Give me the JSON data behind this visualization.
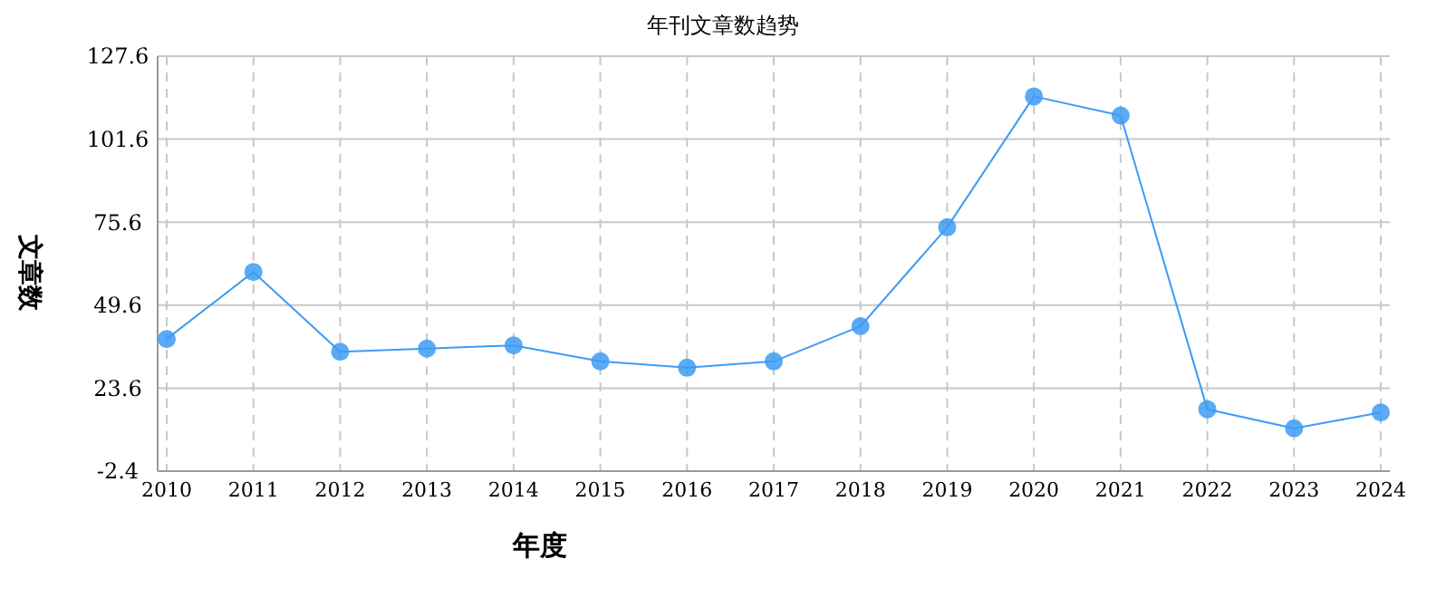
{
  "chart_data": {
    "type": "line",
    "title": "年刊文章数趋势",
    "xlabel": "年度",
    "ylabel": "文章数",
    "categories": [
      "2010",
      "2011",
      "2012",
      "2013",
      "2014",
      "2015",
      "2016",
      "2017",
      "2018",
      "2019",
      "2020",
      "2021",
      "2022",
      "2023",
      "2024"
    ],
    "series": [
      {
        "color": "#3d9bf5",
        "values": [
          39,
          60,
          35,
          36,
          37,
          32,
          30,
          32,
          43,
          74,
          115,
          109,
          17,
          11,
          16
        ]
      }
    ],
    "ylim": [
      -2.4,
      127.6
    ],
    "yticks": [
      -2.4,
      23.6,
      49.6,
      75.6,
      101.6,
      127.6
    ],
    "grid": true,
    "marker": "circle",
    "line_style": "solid"
  }
}
